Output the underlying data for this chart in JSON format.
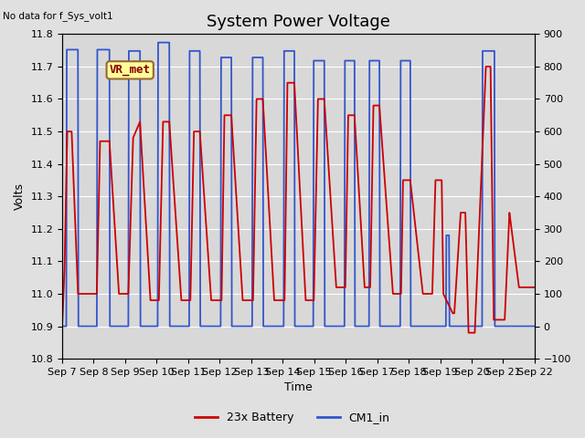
{
  "title": "System Power Voltage",
  "top_left_text": "No data for f_Sys_volt1",
  "xlabel": "Time",
  "ylabel": "Volts",
  "ylim_left": [
    10.8,
    11.8
  ],
  "ylim_right": [
    -100,
    900
  ],
  "yticks_left": [
    10.8,
    10.9,
    11.0,
    11.1,
    11.2,
    11.3,
    11.4,
    11.5,
    11.6,
    11.7,
    11.8
  ],
  "yticks_right": [
    -100,
    0,
    100,
    200,
    300,
    400,
    500,
    600,
    700,
    800,
    900
  ],
  "xtick_labels": [
    "Sep 7",
    "Sep 8",
    "Sep 9",
    "Sep 10",
    "Sep 11",
    "Sep 12",
    "Sep 13",
    "Sep 14",
    "Sep 15",
    "Sep 16",
    "Sep 17",
    "Sep 18",
    "Sep 19",
    "Sep 20",
    "Sep 21",
    "Sep 22"
  ],
  "title_fontsize": 13,
  "axis_fontsize": 9,
  "tick_fontsize": 8,
  "bg_color": "#e0e0e0",
  "plot_bg_color": "#d8d8d8",
  "red_color": "#cc0000",
  "blue_color": "#3355cc",
  "vr_text": "VR_met",
  "vr_color": "#8B0000",
  "vr_bg": "#ffff99",
  "vr_border": "#996633"
}
